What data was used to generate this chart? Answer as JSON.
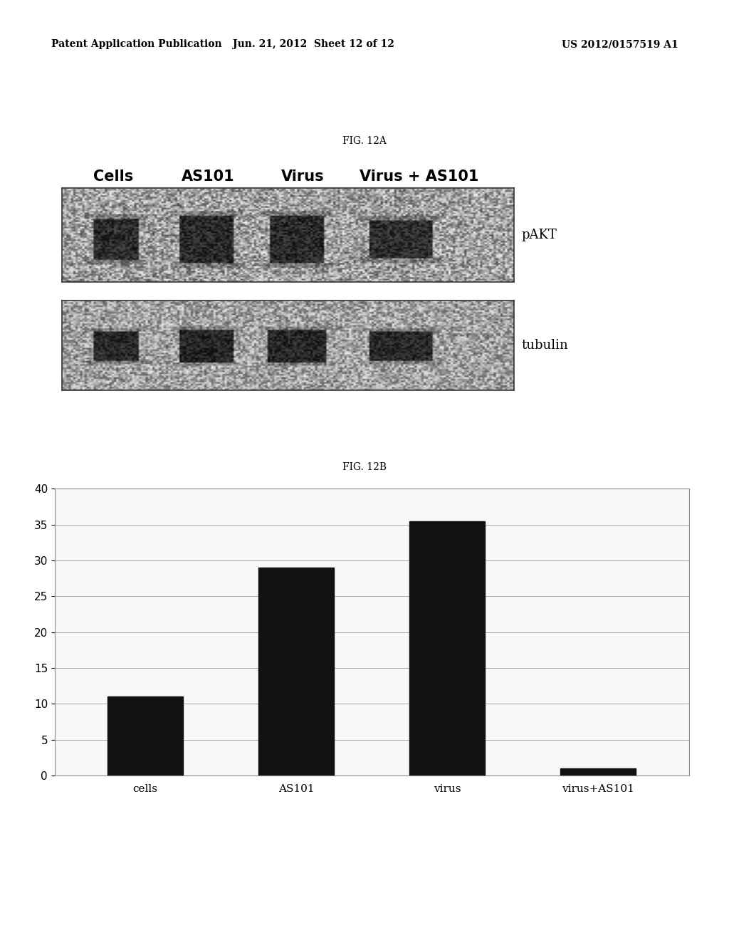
{
  "header_left": "Patent Application Publication",
  "header_mid": "Jun. 21, 2012  Sheet 12 of 12",
  "header_right": "US 2012/0157519 A1",
  "fig12a_title": "FIG. 12A",
  "fig12b_title": "FIG. 12B",
  "col_labels": [
    "Cells",
    "AS101",
    "Virus",
    "Virus + AS101"
  ],
  "row_labels": [
    "pAKT",
    "tubulin"
  ],
  "bar_categories": [
    "cells",
    "AS101",
    "virus",
    "virus+AS101"
  ],
  "bar_values": [
    11.0,
    29.0,
    35.5,
    1.0
  ],
  "bar_color": "#111111",
  "ylim": [
    0,
    40
  ],
  "yticks": [
    0,
    5,
    10,
    15,
    20,
    25,
    30,
    35,
    40
  ],
  "background_color": "#ffffff",
  "header_fontsize": 10,
  "fig_title_fontsize": 10,
  "col_label_fontsize": 15,
  "row_label_fontsize": 13,
  "bar_label_fontsize": 11,
  "axis_tick_fontsize": 11
}
